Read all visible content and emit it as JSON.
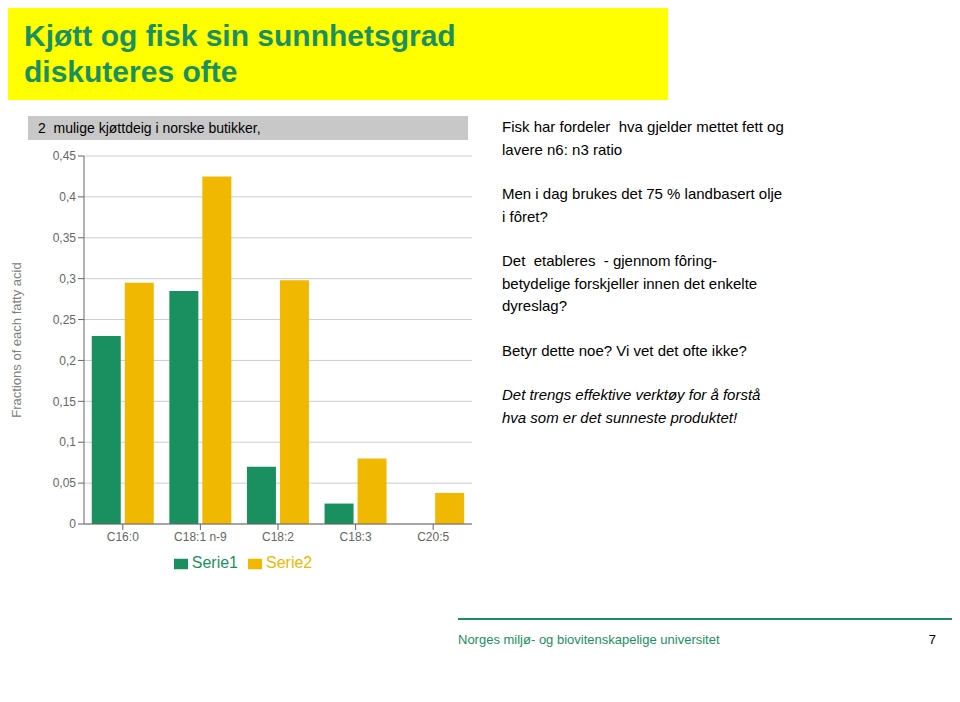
{
  "chart_data": {
    "type": "bar",
    "title": "2  mulige kjøttdeig i norske butikker,",
    "ylabel": "Fractions of each  fatty  acid",
    "categories": [
      "C16:0",
      "C18:1 n-9",
      "C18:2",
      "C18:3",
      "C20:5"
    ],
    "series": [
      {
        "name": "Serie1",
        "color": "#1A9060",
        "values": [
          0.23,
          0.285,
          0.07,
          0.025,
          0.0
        ]
      },
      {
        "name": "Serie2",
        "color": "#F0B800",
        "values": [
          0.295,
          0.425,
          0.298,
          0.08,
          0.038
        ]
      }
    ],
    "ylim": [
      0,
      0.45
    ],
    "yticks": [
      0,
      {
        "value": 0.05,
        "label": "0,05"
      },
      {
        "value": 0.1,
        "label": "0,1"
      },
      {
        "value": 0.15,
        "label": "0,15"
      },
      {
        "value": 0.2,
        "label": "0,2"
      },
      {
        "value": 0.25,
        "label": "0,25"
      },
      {
        "value": 0.3,
        "label": "0,3"
      },
      {
        "value": 0.35,
        "label": "0,35"
      },
      {
        "value": 0.4,
        "label": "0,4"
      },
      {
        "value": 0.45,
        "label": "0,45"
      }
    ],
    "grid": true,
    "legend": "bottom",
    "annotations": [
      "Kjøtt og fisk sin sunnhetsgrad",
      "diskuteres ofte",
      "Fisk har fordeler  hva gjelder mettet fett og\nlavere n6: n3 ratio",
      "Men i dag brukes det 75 % landbasert olje\ni fôret?",
      "Det  etableres  - gjennom fôring-\nbetydelige forskjeller innen det enkelte\ndyreslag?",
      "Betyr dette noe? Vi vet det ofte ikke?",
      "Det trengs effektive verktøy for å forstå\nhva som er det sunneste produktet!",
      "Norges miljø- og biovitenskapelige universitet",
      "7"
    ]
  }
}
